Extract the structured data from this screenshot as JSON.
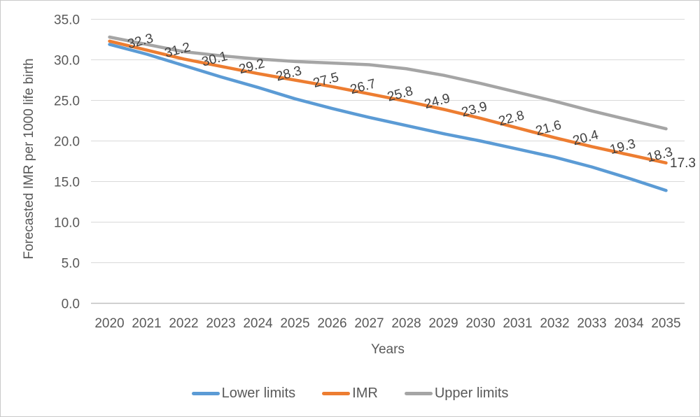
{
  "chart_data": {
    "type": "line",
    "title": "",
    "xlabel": "Years",
    "ylabel": "Forecasted IMR per 1000 life birth",
    "x": [
      "2020",
      "2021",
      "2022",
      "2023",
      "2024",
      "2025",
      "2026",
      "2027",
      "2028",
      "2029",
      "2030",
      "2031",
      "2032",
      "2033",
      "2034",
      "2035"
    ],
    "ylim": [
      0,
      35
    ],
    "ytick_step": 5,
    "yticks": [
      "0.0",
      "5.0",
      "10.0",
      "15.0",
      "20.0",
      "25.0",
      "30.0",
      "35.0"
    ],
    "grid": true,
    "legend_position": "bottom",
    "series": [
      {
        "name": "Lower limits",
        "color": "#5B9BD5",
        "values": [
          31.9,
          30.7,
          29.3,
          27.9,
          26.6,
          25.2,
          24.0,
          22.9,
          21.9,
          20.9,
          20.0,
          19.0,
          18.0,
          16.8,
          15.4,
          13.9
        ]
      },
      {
        "name": "IMR",
        "color": "#ED7D31",
        "values": [
          32.3,
          31.2,
          30.1,
          29.2,
          28.3,
          27.5,
          26.7,
          25.8,
          24.9,
          23.9,
          22.8,
          21.6,
          20.4,
          19.3,
          18.3,
          17.3
        ]
      },
      {
        "name": "Upper limits",
        "color": "#A5A5A5",
        "values": [
          32.8,
          31.9,
          31.0,
          30.5,
          30.1,
          29.8,
          29.6,
          29.4,
          28.9,
          28.1,
          27.1,
          26.0,
          24.9,
          23.7,
          22.6,
          21.5
        ]
      }
    ],
    "data_labels": {
      "series": "IMR",
      "values": [
        "32.3",
        "31.2",
        "30.1",
        "29.2",
        "28.3",
        "27.5",
        "26.7",
        "25.8",
        "24.9",
        "23.9",
        "22.8",
        "21.6",
        "20.4",
        "19.3",
        "18.3",
        "17.3"
      ]
    }
  },
  "colors": {
    "grid": "#D9D9D9",
    "axis_line": "#BFBFBF",
    "tick_text": "#595959",
    "data_label_text": "#404040",
    "border": "#C9C9C9",
    "background": "#FFFFFF"
  }
}
